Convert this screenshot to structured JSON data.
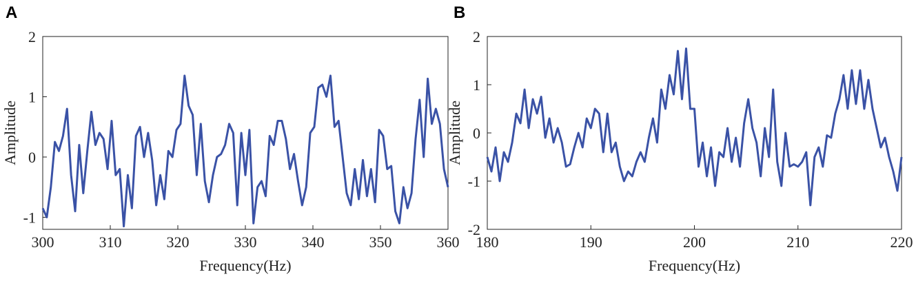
{
  "chart_data": [
    {
      "type": "line",
      "panel": "A",
      "xlabel": "Frequency(Hz)",
      "ylabel": "Amplitude",
      "xlim": [
        300,
        360
      ],
      "xticks": [
        300,
        310,
        320,
        330,
        340,
        350,
        360
      ],
      "ylim": [
        -1.2,
        2
      ],
      "yticks": [
        -1,
        0,
        1,
        2
      ],
      "color": "#3a52a6",
      "x": [
        300,
        300.6,
        301.2,
        301.8,
        302.4,
        303,
        303.6,
        304.2,
        304.8,
        305.4,
        306,
        306.6,
        307.2,
        307.8,
        308.4,
        309,
        309.6,
        310.2,
        310.8,
        311.4,
        312,
        312.6,
        313.2,
        313.8,
        314.4,
        315,
        315.6,
        316.2,
        316.8,
        317.4,
        318,
        318.6,
        319.2,
        319.8,
        320.4,
        321,
        321.6,
        322.2,
        322.8,
        323.4,
        324,
        324.6,
        325.2,
        325.8,
        326.4,
        327,
        327.6,
        328.2,
        328.8,
        329.4,
        330,
        330.6,
        331.2,
        331.8,
        332.4,
        333,
        333.6,
        334.2,
        334.8,
        335.4,
        336,
        336.6,
        337.2,
        337.8,
        338.4,
        339,
        339.6,
        340.2,
        340.8,
        341.4,
        342,
        342.6,
        343.2,
        343.8,
        344.4,
        345,
        345.6,
        346.2,
        346.8,
        347.4,
        348,
        348.6,
        349.2,
        349.8,
        350.4,
        351,
        351.6,
        352.2,
        352.8,
        353.4,
        354,
        354.6,
        355.2,
        355.8,
        356.4,
        357,
        357.6,
        358.2,
        358.8,
        359.4,
        360
      ],
      "values": [
        -0.85,
        -1.0,
        -0.5,
        0.25,
        0.1,
        0.35,
        0.8,
        -0.3,
        -0.9,
        0.2,
        -0.6,
        0.1,
        0.75,
        0.2,
        0.4,
        0.3,
        -0.2,
        0.6,
        -0.3,
        -0.2,
        -1.15,
        -0.3,
        -0.85,
        0.35,
        0.5,
        0.0,
        0.4,
        -0.05,
        -0.8,
        -0.3,
        -0.7,
        0.1,
        0.0,
        0.45,
        0.55,
        1.35,
        0.85,
        0.7,
        -0.3,
        0.55,
        -0.4,
        -0.75,
        -0.3,
        0.0,
        0.05,
        0.2,
        0.55,
        0.4,
        -0.8,
        0.4,
        -0.3,
        0.45,
        -1.1,
        -0.5,
        -0.4,
        -0.65,
        0.35,
        0.2,
        0.6,
        0.6,
        0.3,
        -0.2,
        0.05,
        -0.4,
        -0.8,
        -0.5,
        0.4,
        0.5,
        1.15,
        1.2,
        1.0,
        1.35,
        0.5,
        0.6,
        0.0,
        -0.6,
        -0.8,
        -0.2,
        -0.7,
        -0.05,
        -0.65,
        -0.2,
        -0.75,
        0.45,
        0.35,
        -0.2,
        -0.15,
        -0.9,
        -1.1,
        -0.5,
        -0.85,
        -0.6,
        0.3,
        0.95,
        0.0,
        1.3,
        0.55,
        0.8,
        0.55,
        -0.2,
        -0.5
      ]
    },
    {
      "type": "line",
      "panel": "B",
      "xlabel": "Frequency(Hz)",
      "ylabel": "Amplitude",
      "xlim": [
        180,
        220
      ],
      "xticks": [
        180,
        190,
        200,
        210,
        220
      ],
      "ylim": [
        -2,
        2
      ],
      "yticks": [
        -2,
        -1,
        0,
        1,
        2
      ],
      "color": "#3a52a6",
      "x": [
        180,
        180.4,
        180.8,
        181.2,
        181.6,
        182,
        182.4,
        182.8,
        183.2,
        183.6,
        184,
        184.4,
        184.8,
        185.2,
        185.6,
        186,
        186.4,
        186.8,
        187.2,
        187.6,
        188,
        188.4,
        188.8,
        189.2,
        189.6,
        190,
        190.4,
        190.8,
        191.2,
        191.6,
        192,
        192.4,
        192.8,
        193.2,
        193.6,
        194,
        194.4,
        194.8,
        195.2,
        195.6,
        196,
        196.4,
        196.8,
        197.2,
        197.6,
        198,
        198.4,
        198.8,
        199.2,
        199.6,
        200,
        200.4,
        200.8,
        201.2,
        201.6,
        202,
        202.4,
        202.8,
        203.2,
        203.6,
        204,
        204.4,
        204.8,
        205.2,
        205.6,
        206,
        206.4,
        206.8,
        207.2,
        207.6,
        208,
        208.4,
        208.8,
        209.2,
        209.6,
        210,
        210.4,
        210.8,
        211.2,
        211.6,
        212,
        212.4,
        212.8,
        213.2,
        213.6,
        214,
        214.4,
        214.8,
        215.2,
        215.6,
        216,
        216.4,
        216.8,
        217.2,
        217.6,
        218,
        218.4,
        218.8,
        219.2,
        219.6,
        220
      ],
      "values": [
        -0.5,
        -0.8,
        -0.3,
        -1.0,
        -0.4,
        -0.6,
        -0.2,
        0.4,
        0.2,
        0.9,
        0.1,
        0.7,
        0.4,
        0.75,
        -0.1,
        0.3,
        -0.2,
        0.1,
        -0.2,
        -0.7,
        -0.65,
        -0.3,
        0.0,
        -0.3,
        0.3,
        0.1,
        0.5,
        0.4,
        -0.4,
        0.4,
        -0.4,
        -0.2,
        -0.7,
        -1.0,
        -0.8,
        -0.9,
        -0.6,
        -0.4,
        -0.6,
        -0.1,
        0.3,
        -0.2,
        0.9,
        0.5,
        1.2,
        0.8,
        1.7,
        0.7,
        1.75,
        0.5,
        0.5,
        -0.7,
        -0.2,
        -0.9,
        -0.3,
        -1.1,
        -0.4,
        -0.5,
        0.1,
        -0.6,
        -0.1,
        -0.7,
        0.2,
        0.7,
        0.1,
        -0.2,
        -0.9,
        0.1,
        -0.5,
        0.9,
        -0.6,
        -1.1,
        0.0,
        -0.7,
        -0.65,
        -0.7,
        -0.6,
        -0.4,
        -1.5,
        -0.5,
        -0.3,
        -0.7,
        -0.05,
        -0.1,
        0.4,
        0.7,
        1.2,
        0.5,
        1.3,
        0.6,
        1.3,
        0.5,
        1.1,
        0.5,
        0.1,
        -0.3,
        -0.1,
        -0.5,
        -0.8,
        -1.2,
        -0.5
      ]
    }
  ]
}
